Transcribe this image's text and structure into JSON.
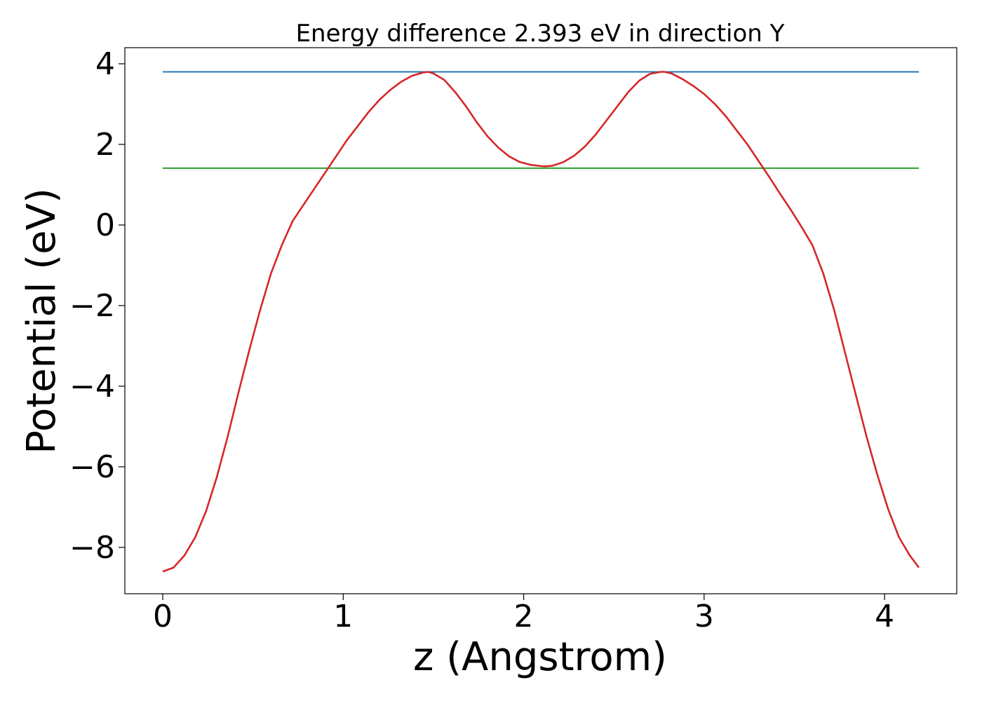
{
  "chart_data": {
    "type": "line",
    "title": "Energy difference 2.393 eV in direction Y",
    "xlabel": "z (Angstrom)",
    "ylabel": "Potential (eV)",
    "xlim": [
      -0.21,
      4.4
    ],
    "ylim": [
      -9.15,
      4.4
    ],
    "xticks": [
      0,
      1,
      2,
      3,
      4
    ],
    "yticks": [
      -8,
      -6,
      -4,
      -2,
      0,
      2,
      4
    ],
    "xtick_labels": [
      "0",
      "1",
      "2",
      "3",
      "4"
    ],
    "ytick_labels": [
      "−8",
      "−6",
      "−4",
      "−2",
      "0",
      "2",
      "4"
    ],
    "grid": false,
    "legend": "none",
    "series": [
      {
        "color": "#1f77b4",
        "x": [
          0,
          4.19
        ],
        "y": [
          3.8,
          3.8
        ]
      },
      {
        "color": "#2ca02c",
        "x": [
          0,
          4.19
        ],
        "y": [
          1.41,
          1.41
        ]
      },
      {
        "color": "#d62728",
        "x": [
          0,
          0.06,
          0.12,
          0.18,
          0.24,
          0.3,
          0.36,
          0.42,
          0.48,
          0.54,
          0.6,
          0.66,
          0.72,
          0.78,
          0.84,
          0.9,
          0.96,
          1.02,
          1.08,
          1.14,
          1.2,
          1.26,
          1.32,
          1.38,
          1.44,
          1.47,
          1.5,
          1.56,
          1.62,
          1.68,
          1.74,
          1.8,
          1.86,
          1.92,
          1.98,
          2.04,
          2.1,
          2.12,
          2.16,
          2.22,
          2.28,
          2.34,
          2.4,
          2.46,
          2.52,
          2.58,
          2.64,
          2.7,
          2.76,
          2.78,
          2.82,
          2.88,
          2.94,
          3.0,
          3.06,
          3.12,
          3.18,
          3.24,
          3.3,
          3.36,
          3.42,
          3.48,
          3.54,
          3.6,
          3.66,
          3.72,
          3.78,
          3.84,
          3.9,
          3.96,
          4.02,
          4.08,
          4.14,
          4.19
        ],
        "y": [
          -8.6,
          -8.5,
          -8.2,
          -7.75,
          -7.1,
          -6.25,
          -5.25,
          -4.15,
          -3.1,
          -2.1,
          -1.2,
          -0.5,
          0.1,
          0.5,
          0.9,
          1.3,
          1.7,
          2.1,
          2.45,
          2.8,
          3.1,
          3.35,
          3.55,
          3.7,
          3.78,
          3.8,
          3.76,
          3.6,
          3.3,
          2.95,
          2.55,
          2.2,
          1.92,
          1.7,
          1.56,
          1.49,
          1.46,
          1.455,
          1.47,
          1.56,
          1.72,
          1.95,
          2.25,
          2.6,
          2.95,
          3.3,
          3.58,
          3.75,
          3.8,
          3.8,
          3.76,
          3.62,
          3.45,
          3.25,
          3.0,
          2.7,
          2.35,
          2.0,
          1.6,
          1.2,
          0.78,
          0.38,
          -0.05,
          -0.5,
          -1.2,
          -2.1,
          -3.15,
          -4.2,
          -5.25,
          -6.2,
          -7.05,
          -7.75,
          -8.2,
          -8.5
        ]
      }
    ]
  }
}
